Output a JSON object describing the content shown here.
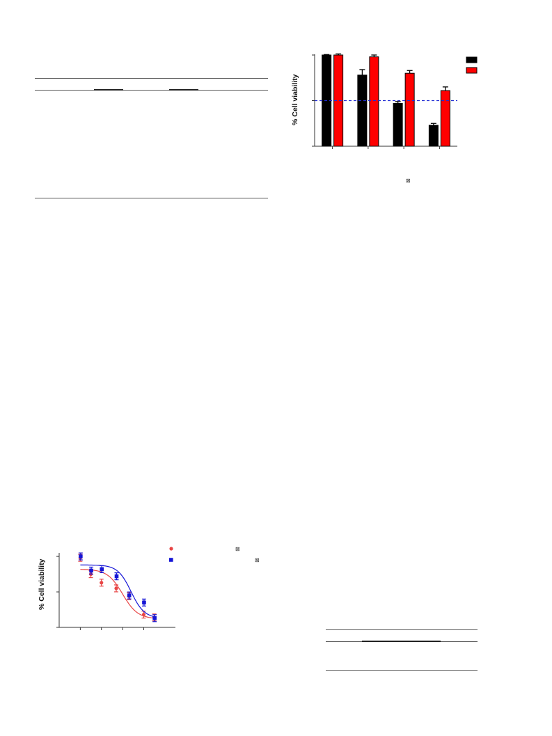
{
  "table_top": {
    "description": "table with horizontal rules only; no legible text"
  },
  "table_bottom": {
    "description": "table with horizontal rules only; no legible text"
  },
  "chart_data": [
    {
      "type": "bar",
      "title": "",
      "xlabel": "",
      "ylabel": "% Cell viability",
      "categories": [
        "",
        "",
        "",
        ""
      ],
      "series": [
        {
          "color": "#000000",
          "values": [
            100,
            78,
            47,
            23
          ],
          "errors": [
            0.5,
            6,
            2,
            2
          ]
        },
        {
          "color": "#ff0000",
          "values": [
            100,
            98,
            80,
            61
          ],
          "errors": [
            1.2,
            2,
            3,
            4
          ]
        }
      ],
      "reference_line": {
        "value": 50,
        "color": "#1f2bd4",
        "style": "dashed"
      },
      "ylim": [
        0,
        100
      ],
      "legend_placement": "top-right",
      "footnote_glyph": "⊠"
    },
    {
      "type": "scatter",
      "title": "",
      "xlabel": "",
      "ylabel": "% Cell viability",
      "xlim": [
        0,
        11
      ],
      "ylim": [
        0,
        105
      ],
      "fit": "sigmoidal",
      "series": [
        {
          "color": "#e84545",
          "marker": "circle",
          "x": [
            2,
            3,
            4,
            5.4,
            6.6,
            8,
            9
          ],
          "y": [
            98,
            75,
            63,
            55,
            44,
            18,
            14
          ],
          "fit_curve": {
            "top": 82,
            "bottom": 12,
            "mid": 6.0,
            "slope": 1.4
          },
          "glyph": "⊠"
        },
        {
          "color": "#1515d6",
          "marker": "square",
          "x": [
            2,
            3,
            4,
            5.4,
            6.6,
            8,
            9
          ],
          "y": [
            100,
            80,
            82,
            72,
            45,
            35,
            13
          ],
          "fit_curve": {
            "top": 88,
            "bottom": 13,
            "mid": 6.8,
            "slope": 1.6
          },
          "glyph": "⊠"
        }
      ]
    }
  ]
}
